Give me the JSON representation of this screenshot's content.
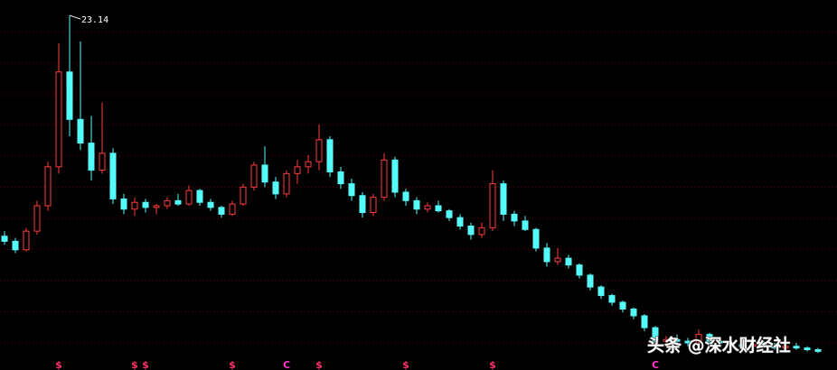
{
  "chart_data": {
    "type": "candlestick",
    "up_color": "#ff3c3c",
    "down_color": "#54fcfc",
    "ylim": [
      2.2,
      24.05
    ],
    "candles": [
      [
        10.1,
        10.4,
        9.6,
        9.8
      ],
      [
        9.8,
        10.0,
        9.1,
        9.3
      ],
      [
        9.3,
        10.6,
        9.2,
        10.4
      ],
      [
        10.4,
        12.2,
        10.2,
        11.9
      ],
      [
        11.9,
        14.5,
        11.6,
        14.2
      ],
      [
        14.2,
        21.5,
        13.8,
        19.8
      ],
      [
        19.8,
        23.14,
        16.0,
        17.0
      ],
      [
        17.0,
        21.6,
        15.2,
        15.6
      ],
      [
        15.6,
        17.2,
        13.4,
        14.0
      ],
      [
        14.0,
        18.0,
        13.8,
        15.0
      ],
      [
        15.0,
        15.3,
        12.0,
        12.3
      ],
      [
        12.3,
        12.6,
        11.4,
        11.7
      ],
      [
        11.7,
        12.4,
        11.3,
        12.1
      ],
      [
        12.1,
        12.3,
        11.5,
        11.8
      ],
      [
        11.8,
        12.0,
        11.4,
        11.9
      ],
      [
        11.9,
        12.4,
        11.7,
        12.2
      ],
      [
        12.2,
        12.6,
        11.9,
        12.0
      ],
      [
        12.0,
        13.1,
        11.9,
        12.8
      ],
      [
        12.8,
        12.9,
        11.9,
        12.1
      ],
      [
        12.1,
        12.3,
        11.6,
        11.8
      ],
      [
        11.8,
        11.9,
        11.2,
        11.4
      ],
      [
        11.4,
        12.2,
        11.3,
        12.0
      ],
      [
        12.0,
        13.2,
        11.9,
        13.0
      ],
      [
        13.0,
        14.5,
        12.8,
        14.3
      ],
      [
        14.3,
        15.4,
        13.0,
        13.3
      ],
      [
        13.3,
        13.6,
        12.3,
        12.6
      ],
      [
        12.6,
        14.0,
        12.4,
        13.8
      ],
      [
        13.8,
        14.6,
        13.2,
        14.2
      ],
      [
        14.2,
        14.9,
        13.8,
        14.5
      ],
      [
        14.5,
        16.7,
        14.0,
        15.8
      ],
      [
        15.8,
        16.0,
        13.6,
        13.9
      ],
      [
        13.9,
        14.2,
        12.9,
        13.2
      ],
      [
        13.2,
        13.5,
        12.2,
        12.5
      ],
      [
        12.5,
        12.7,
        11.2,
        11.5
      ],
      [
        11.5,
        12.6,
        11.3,
        12.4
      ],
      [
        12.4,
        15.0,
        12.2,
        14.6
      ],
      [
        14.6,
        14.8,
        12.4,
        12.7
      ],
      [
        12.7,
        12.9,
        11.9,
        12.2
      ],
      [
        12.2,
        12.4,
        11.4,
        11.7
      ],
      [
        11.7,
        12.1,
        11.5,
        11.9
      ],
      [
        11.9,
        12.2,
        11.5,
        11.6
      ],
      [
        11.6,
        11.7,
        11.0,
        11.2
      ],
      [
        11.2,
        11.4,
        10.5,
        10.7
      ],
      [
        10.7,
        10.9,
        9.9,
        10.2
      ],
      [
        10.2,
        10.9,
        10.0,
        10.6
      ],
      [
        10.6,
        14.0,
        10.4,
        13.2
      ],
      [
        13.2,
        13.4,
        11.0,
        11.4
      ],
      [
        11.4,
        11.6,
        10.7,
        11.0
      ],
      [
        11.0,
        11.3,
        10.4,
        10.5
      ],
      [
        10.5,
        10.6,
        9.2,
        9.4
      ],
      [
        9.4,
        9.7,
        8.3,
        8.6
      ],
      [
        8.6,
        9.4,
        8.4,
        8.8
      ],
      [
        8.8,
        9.0,
        8.2,
        8.4
      ],
      [
        8.4,
        8.5,
        7.6,
        7.8
      ],
      [
        7.8,
        7.9,
        6.9,
        7.1
      ],
      [
        7.1,
        7.2,
        6.4,
        6.6
      ],
      [
        6.6,
        6.7,
        6.0,
        6.2
      ],
      [
        6.2,
        6.3,
        5.6,
        5.8
      ],
      [
        5.8,
        5.9,
        5.2,
        5.4
      ],
      [
        5.4,
        5.5,
        4.5,
        4.7
      ],
      [
        4.7,
        4.8,
        3.7,
        3.9
      ],
      [
        3.9,
        4.2,
        3.6,
        4.0
      ],
      [
        4.0,
        4.3,
        3.7,
        3.9
      ],
      [
        3.9,
        4.1,
        3.6,
        3.8
      ],
      [
        3.8,
        4.6,
        3.7,
        4.3
      ],
      [
        4.3,
        4.4,
        3.7,
        3.9
      ],
      [
        3.9,
        4.1,
        3.6,
        3.8
      ],
      [
        3.8,
        4.0,
        3.5,
        3.7
      ],
      [
        3.7,
        3.9,
        3.5,
        3.6
      ],
      [
        3.6,
        3.8,
        3.4,
        3.7
      ],
      [
        3.7,
        3.9,
        3.5,
        3.6
      ],
      [
        3.6,
        3.8,
        3.4,
        3.5
      ],
      [
        3.5,
        3.7,
        3.3,
        3.6
      ],
      [
        3.6,
        3.8,
        3.4,
        3.5
      ],
      [
        3.5,
        3.6,
        3.3,
        3.4
      ],
      [
        3.4,
        3.5,
        3.2,
        3.3
      ]
    ],
    "peak_label_index": 6,
    "events": [
      null,
      null,
      null,
      null,
      null,
      "$",
      null,
      null,
      null,
      null,
      null,
      null,
      "$",
      "$",
      null,
      null,
      null,
      null,
      null,
      null,
      null,
      "$",
      null,
      null,
      null,
      null,
      "C",
      null,
      null,
      "$",
      null,
      null,
      null,
      null,
      null,
      null,
      null,
      "$",
      null,
      null,
      null,
      null,
      null,
      null,
      null,
      "$",
      null,
      null,
      null,
      null,
      null,
      null,
      null,
      null,
      null,
      null,
      null,
      null,
      null,
      null,
      "C",
      null,
      null,
      null,
      null,
      null,
      null,
      null,
      null,
      null,
      null,
      null,
      null,
      null,
      null,
      null
    ],
    "watermark": "头条 @深水财经社"
  }
}
